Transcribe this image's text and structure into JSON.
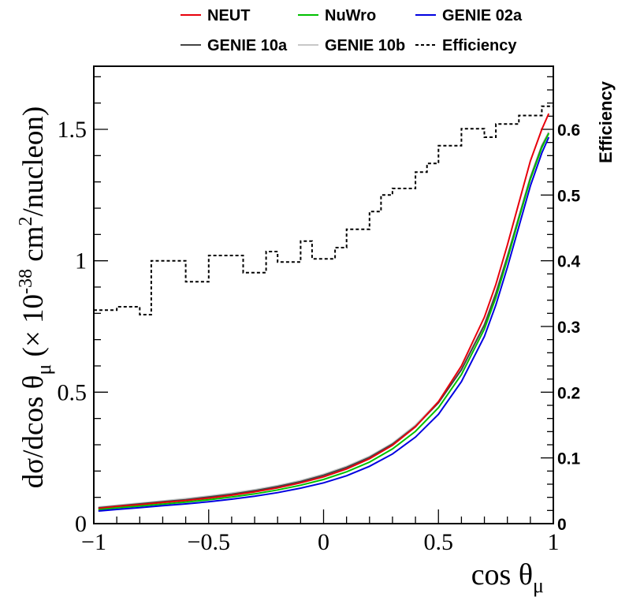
{
  "chart_data": {
    "type": "line",
    "xlabel": "cos θ",
    "xlabel_sub": "μ",
    "ylabel_main": "dσ/dcos θ",
    "ylabel_sub": "μ",
    "ylabel_open": " (× 10",
    "ylabel_exp": "-38",
    "ylabel_unit": " cm",
    "ylabel_unit_exp": "2",
    "ylabel_close": "/nucleon)",
    "y2label": "Efficiency",
    "xlim": [
      -1,
      1
    ],
    "ylim": [
      0,
      1.74
    ],
    "y2lim": [
      0,
      0.696
    ],
    "x_ticks": [
      -1,
      -0.5,
      0,
      0.5,
      1
    ],
    "x_tick_labels": [
      "−1",
      "−0.5",
      "0",
      "0.5",
      "1"
    ],
    "y_ticks": [
      0,
      0.5,
      1,
      1.5
    ],
    "y_tick_labels": [
      "0",
      "0.5",
      "1",
      "1.5"
    ],
    "y2_ticks": [
      0,
      0.1,
      0.2,
      0.3,
      0.4,
      0.5,
      0.6
    ],
    "y2_tick_labels": [
      "0",
      "0.1",
      "0.2",
      "0.3",
      "0.4",
      "0.5",
      "0.6"
    ],
    "legend": [
      "NEUT",
      "NuWro",
      "GENIE 02a",
      "GENIE 10a",
      "GENIE 10b",
      "Efficiency"
    ],
    "x": [
      -0.98,
      -0.9,
      -0.8,
      -0.7,
      -0.6,
      -0.5,
      -0.4,
      -0.3,
      -0.2,
      -0.1,
      0,
      0.1,
      0.2,
      0.3,
      0.4,
      0.5,
      0.6,
      0.7,
      0.75,
      0.8,
      0.85,
      0.9,
      0.95,
      0.98
    ],
    "series": [
      {
        "name": "GENIE 10b",
        "color": "#c8c8c8",
        "values": [
          0.063,
          0.07,
          0.078,
          0.086,
          0.095,
          0.105,
          0.116,
          0.129,
          0.145,
          0.164,
          0.188,
          0.218,
          0.256,
          0.306,
          0.375,
          0.465,
          0.59,
          0.76,
          0.88,
          1.02,
          1.17,
          1.32,
          1.44,
          1.49
        ]
      },
      {
        "name": "GENIE 10a",
        "color": "#444444",
        "values": [
          0.06,
          0.067,
          0.075,
          0.083,
          0.091,
          0.101,
          0.112,
          0.125,
          0.141,
          0.16,
          0.184,
          0.214,
          0.252,
          0.302,
          0.37,
          0.46,
          0.585,
          0.755,
          0.875,
          1.015,
          1.165,
          1.315,
          1.435,
          1.485
        ]
      },
      {
        "name": "NEUT",
        "color": "#e8000b",
        "values": [
          0.058,
          0.065,
          0.072,
          0.08,
          0.088,
          0.097,
          0.108,
          0.121,
          0.136,
          0.155,
          0.178,
          0.208,
          0.247,
          0.298,
          0.368,
          0.464,
          0.6,
          0.785,
          0.91,
          1.06,
          1.22,
          1.38,
          1.5,
          1.56
        ]
      },
      {
        "name": "NuWro",
        "color": "#00c000",
        "values": [
          0.053,
          0.06,
          0.067,
          0.074,
          0.082,
          0.091,
          0.101,
          0.113,
          0.128,
          0.146,
          0.168,
          0.197,
          0.234,
          0.284,
          0.351,
          0.441,
          0.567,
          0.74,
          0.86,
          1.005,
          1.16,
          1.31,
          1.43,
          1.485
        ]
      },
      {
        "name": "GENIE 02a",
        "color": "#0000e0",
        "values": [
          0.048,
          0.054,
          0.061,
          0.068,
          0.075,
          0.083,
          0.093,
          0.104,
          0.118,
          0.135,
          0.155,
          0.182,
          0.218,
          0.265,
          0.329,
          0.416,
          0.54,
          0.712,
          0.832,
          0.975,
          1.13,
          1.285,
          1.41,
          1.47
        ]
      }
    ],
    "efficiency": {
      "name": "Efficiency",
      "bin_edges": [
        -1.0,
        -0.9,
        -0.8,
        -0.75,
        -0.6,
        -0.5,
        -0.35,
        -0.25,
        -0.2,
        -0.1,
        -0.05,
        0.05,
        0.1,
        0.2,
        0.25,
        0.3,
        0.4,
        0.45,
        0.5,
        0.6,
        0.7,
        0.75,
        0.85,
        0.95,
        1.0
      ],
      "values": [
        0.325,
        0.33,
        0.318,
        0.4,
        0.368,
        0.408,
        0.382,
        0.414,
        0.398,
        0.43,
        0.403,
        0.42,
        0.448,
        0.475,
        0.5,
        0.51,
        0.535,
        0.548,
        0.575,
        0.601,
        0.588,
        0.608,
        0.621,
        0.635
      ]
    }
  }
}
